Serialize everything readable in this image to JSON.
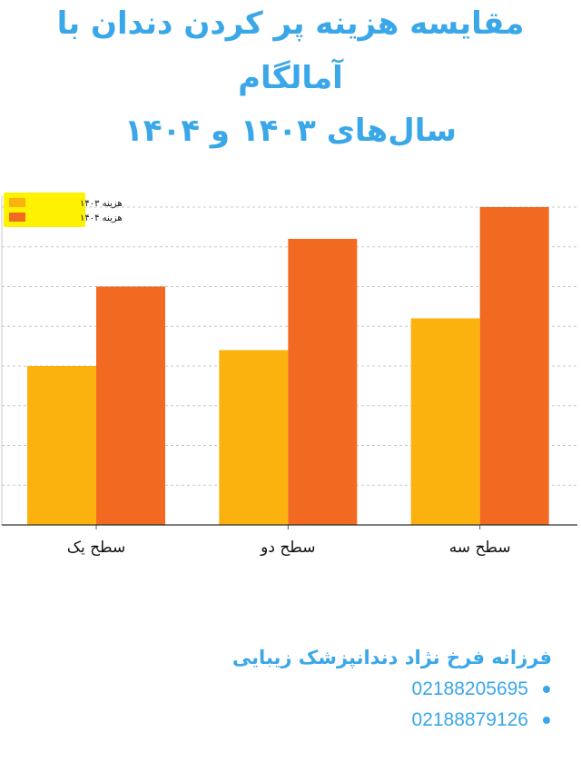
{
  "header": {
    "title_line1": "مقایسه هزینه پر کردن دندان با",
    "title_line2": "آمالگام",
    "title_line3": "سال‌های ۱۴۰۳ و ۱۴۰۴"
  },
  "chart_data": {
    "type": "bar",
    "categories": [
      "سطح یک",
      "سطح دو",
      "سطح سه"
    ],
    "series": [
      {
        "name": "هزینه ۱۴۰۳",
        "color": "#fbb20f",
        "values": [
          40,
          44,
          52
        ]
      },
      {
        "name": "هزینه ۱۴۰۴",
        "color": "#f26a22",
        "values": [
          60,
          72,
          80
        ]
      }
    ],
    "ylim": [
      0,
      80
    ],
    "grid": true,
    "legend": "top-left"
  },
  "footer": {
    "name": "فرزانه فرخ نژاد دندانپزشک زیبایی",
    "phones": [
      "02188205695",
      "02188879126"
    ],
    "accent": "#3aa7e8"
  }
}
